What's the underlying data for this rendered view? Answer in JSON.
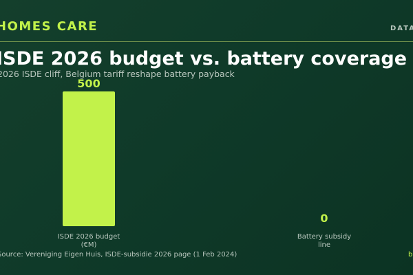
{
  "header": {
    "brand": "HOMES CARE",
    "tag": "DATA"
  },
  "chart_data": {
    "type": "bar",
    "title": "ISDE 2026 budget vs. battery coverage",
    "subtitle": "2026 ISDE cliff, Belgium tariff reshape battery payback",
    "categories": [
      "ISDE 2026 budget (€M)",
      "Battery subsidy line"
    ],
    "category_lines": [
      [
        "ISDE 2026 budget",
        "(€M)"
      ],
      [
        "Battery subsidy",
        "line"
      ]
    ],
    "values": [
      500,
      0
    ],
    "value_labels": [
      "500",
      "0"
    ],
    "ylim": [
      0,
      500
    ],
    "grid": false,
    "legend": "none"
  },
  "footer": {
    "source": "Source: Vereniging Eigen Huis, ISDE-subsidie 2026 page (1 Feb 2024)",
    "corner": "b"
  },
  "colors": {
    "bar": "#c2f24a",
    "accent": "#c2f24a",
    "muted": "#b9c7be",
    "background": "#0f3a29"
  }
}
